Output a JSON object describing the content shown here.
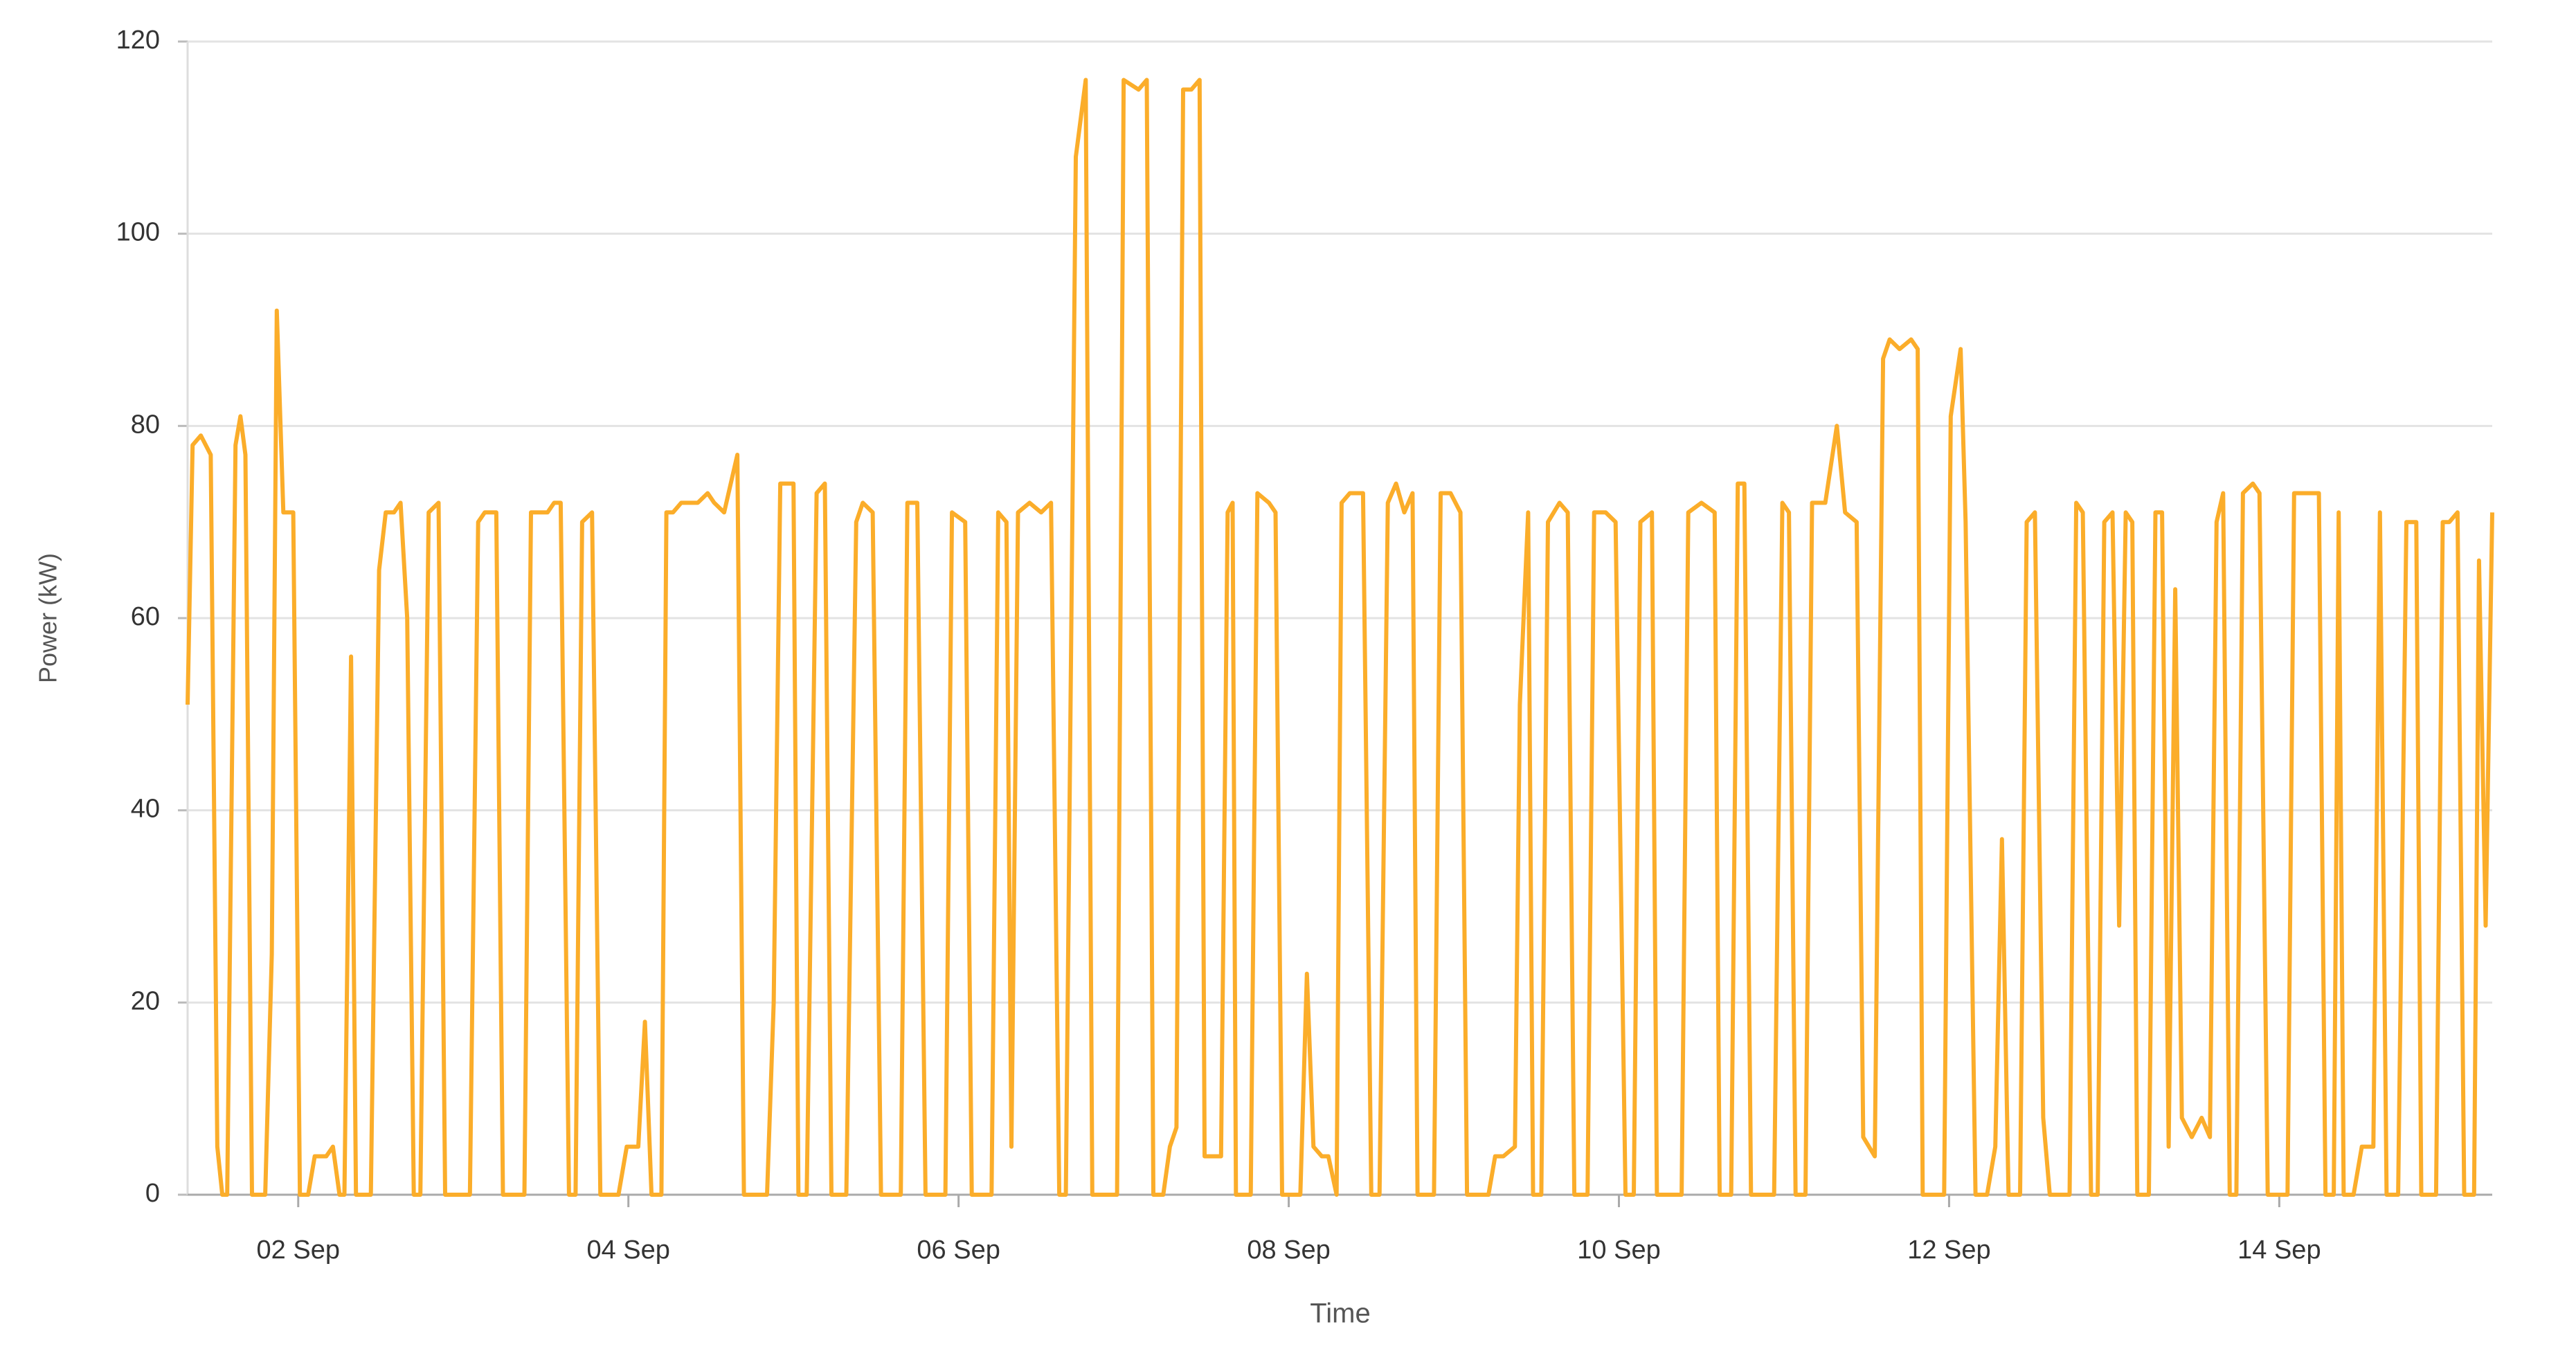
{
  "chart_data": {
    "type": "line",
    "xlabel": "Time",
    "ylabel": "Power (kW)",
    "color": "#fbad2a",
    "grid": true,
    "xlim": [
      1.33,
      15.29
    ],
    "xticks": [
      {
        "value": 2,
        "label": "02 Sep"
      },
      {
        "value": 4,
        "label": "04 Sep"
      },
      {
        "value": 6,
        "label": "06 Sep"
      },
      {
        "value": 8,
        "label": "08 Sep"
      },
      {
        "value": 10,
        "label": "10 Sep"
      },
      {
        "value": 12,
        "label": "12 Sep"
      },
      {
        "value": 14,
        "label": "14 Sep"
      }
    ],
    "ylim": [
      0,
      120
    ],
    "yticks": [
      0,
      20,
      40,
      60,
      80,
      100,
      120
    ],
    "x": [
      1.33,
      1.36,
      1.41,
      1.47,
      1.51,
      1.54,
      1.57,
      1.62,
      1.65,
      1.68,
      1.72,
      1.8,
      1.84,
      1.87,
      1.91,
      1.97,
      2.01,
      2.06,
      2.1,
      2.17,
      2.21,
      2.25,
      2.28,
      2.32,
      2.35,
      2.44,
      2.49,
      2.53,
      2.58,
      2.62,
      2.66,
      2.7,
      2.74,
      2.79,
      2.85,
      2.89,
      3.04,
      3.09,
      3.13,
      3.2,
      3.24,
      3.37,
      3.41,
      3.46,
      3.51,
      3.55,
      3.59,
      3.64,
      3.68,
      3.72,
      3.78,
      3.83,
      3.94,
      3.99,
      4.06,
      4.1,
      4.14,
      4.2,
      4.23,
      4.27,
      4.32,
      4.42,
      4.48,
      4.52,
      4.58,
      4.66,
      4.7,
      4.84,
      4.88,
      4.92,
      5.0,
      5.03,
      5.08,
      5.14,
      5.19,
      5.23,
      5.32,
      5.38,
      5.42,
      5.48,
      5.53,
      5.65,
      5.69,
      5.75,
      5.8,
      5.92,
      5.96,
      6.04,
      6.08,
      6.2,
      6.24,
      6.29,
      6.32,
      6.36,
      6.43,
      6.5,
      6.56,
      6.61,
      6.65,
      6.71,
      6.77,
      6.81,
      6.96,
      7.0,
      7.09,
      7.14,
      7.18,
      7.24,
      7.28,
      7.32,
      7.36,
      7.41,
      7.46,
      7.49,
      7.59,
      7.63,
      7.66,
      7.68,
      7.77,
      7.81,
      7.88,
      7.92,
      7.96,
      8.07,
      8.11,
      8.15,
      8.2,
      8.24,
      8.29,
      8.32,
      8.37,
      8.45,
      8.5,
      8.55,
      8.6,
      8.65,
      8.7,
      8.75,
      8.78,
      8.88,
      8.92,
      8.98,
      9.04,
      9.08,
      9.21,
      9.25,
      9.3,
      9.37,
      9.4,
      9.45,
      9.48,
      9.53,
      9.57,
      9.64,
      9.69,
      9.73,
      9.81,
      9.85,
      9.92,
      9.98,
      10.04,
      10.09,
      10.13,
      10.2,
      10.23,
      10.38,
      10.42,
      10.5,
      10.58,
      10.61,
      10.68,
      10.72,
      10.76,
      10.8,
      10.94,
      10.99,
      11.03,
      11.07,
      11.13,
      11.17,
      11.25,
      11.32,
      11.37,
      11.44,
      11.48,
      11.55,
      11.6,
      11.64,
      11.7,
      11.77,
      11.81,
      11.84,
      11.97,
      12.01,
      12.07,
      12.1,
      12.16,
      12.23,
      12.28,
      12.32,
      12.36,
      12.43,
      12.47,
      12.52,
      12.57,
      12.61,
      12.73,
      12.77,
      12.81,
      12.86,
      12.9,
      12.94,
      12.99,
      13.03,
      13.07,
      13.11,
      13.14,
      13.21,
      13.25,
      13.29,
      13.33,
      13.37,
      13.41,
      13.47,
      13.53,
      13.58,
      13.62,
      13.66,
      13.7,
      13.74,
      13.78,
      13.84,
      13.88,
      13.93,
      14.05,
      14.09,
      14.19,
      14.24,
      14.28,
      14.33,
      14.36,
      14.39,
      14.45,
      14.5,
      14.57,
      14.61,
      14.65,
      14.72,
      14.77,
      14.83,
      14.86,
      14.95,
      14.99,
      15.03,
      15.08,
      15.12,
      15.18,
      15.21,
      15.25,
      15.29
    ],
    "values": [
      51,
      78,
      79,
      77,
      5,
      0,
      0,
      78,
      81,
      77,
      0,
      0,
      25,
      92,
      71,
      71,
      0,
      0,
      4,
      4,
      5,
      0,
      0,
      56,
      0,
      0,
      65,
      71,
      71,
      72,
      60,
      0,
      0,
      71,
      72,
      0,
      0,
      70,
      71,
      71,
      0,
      0,
      71,
      71,
      71,
      72,
      72,
      0,
      0,
      70,
      71,
      0,
      0,
      5,
      5,
      18,
      0,
      0,
      71,
      71,
      72,
      72,
      73,
      72,
      71,
      77,
      0,
      0,
      20,
      74,
      74,
      0,
      0,
      73,
      74,
      0,
      0,
      70,
      72,
      71,
      0,
      0,
      72,
      72,
      0,
      0,
      71,
      70,
      0,
      0,
      71,
      70,
      5,
      71,
      72,
      71,
      72,
      0,
      0,
      108,
      116,
      0,
      0,
      116,
      115,
      116,
      0,
      0,
      5,
      7,
      115,
      115,
      116,
      4,
      4,
      71,
      72,
      0,
      0,
      73,
      72,
      71,
      0,
      0,
      23,
      5,
      4,
      4,
      0,
      72,
      73,
      73,
      0,
      0,
      72,
      74,
      71,
      73,
      0,
      0,
      73,
      73,
      71,
      0,
      0,
      4,
      4,
      5,
      51,
      71,
      0,
      0,
      70,
      72,
      71,
      0,
      0,
      71,
      71,
      70,
      0,
      0,
      70,
      71,
      0,
      0,
      71,
      72,
      71,
      0,
      0,
      74,
      74,
      0,
      0,
      72,
      71,
      0,
      0,
      72,
      72,
      80,
      71,
      70,
      6,
      4,
      87,
      89,
      88,
      89,
      88,
      0,
      0,
      81,
      88,
      70,
      0,
      0,
      5,
      37,
      0,
      0,
      70,
      71,
      8,
      0,
      0,
      72,
      71,
      0,
      0,
      70,
      71,
      28,
      71,
      70,
      0,
      0,
      71,
      71,
      5,
      63,
      8,
      6,
      8,
      6,
      70,
      73,
      0,
      0,
      73,
      74,
      73,
      0,
      0,
      73,
      73,
      73,
      0,
      0,
      71,
      0,
      0,
      5,
      5,
      71,
      0,
      0,
      70,
      70,
      0,
      0,
      70,
      70,
      71,
      0,
      0,
      66,
      28,
      71
    ]
  }
}
